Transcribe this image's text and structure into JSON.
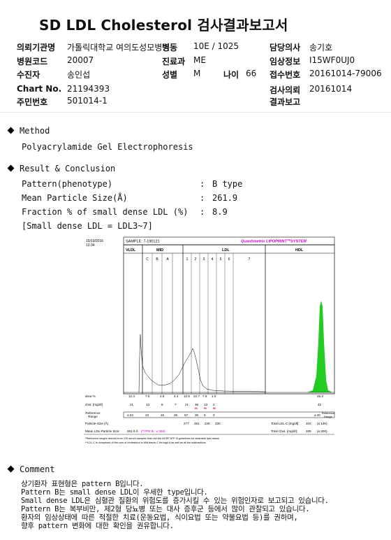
{
  "title": "SD LDL Cholesterol 검사결과보고서",
  "header": {
    "institution_label": "의뢰기관명",
    "institution": "가톨릭대학교 여의도성모병원",
    "ward_label": "병동",
    "ward": "10E / 1025",
    "physician_label": "담당의사",
    "physician": "송기호",
    "hospital_code_label": "병원코드",
    "hospital_code": "20007",
    "dept_label": "진료과",
    "dept": "ME",
    "clinical_info_label": "임상정보",
    "clinical_info": "I15WF0UJ0",
    "patient_label": "수진자",
    "patient": "송인섭",
    "sex_label": "성별",
    "sex": "M",
    "age_label": "나이",
    "age": "66",
    "reception_label": "접수번호",
    "reception": "20161014-79006",
    "chart_label": "Chart No.",
    "chart": "21194393",
    "request_date_label": "검사의뢰",
    "request_date": "20161014",
    "resident_label": "주민번호",
    "resident": "501014-1",
    "result_report_label": "결과보고",
    "result_report": ""
  },
  "method": {
    "heading": "Method",
    "text": "Polyacrylamide Gel Electrophoresis"
  },
  "result": {
    "heading": "Result & Conclusion",
    "rows": [
      {
        "label": "Pattern(phenotype)",
        "colon": ":",
        "value": "B type"
      },
      {
        "label": "Mean Particle Size(Å)",
        "colon": ":",
        "value": "261.9"
      },
      {
        "label": "Fraction % of small dense LDL (%)",
        "colon": ":",
        "value": "8.9"
      }
    ],
    "note": "[Small dense LDL = LDL3~7]"
  },
  "report": {
    "date": "10/19/2016",
    "time": "13:34",
    "sample": "SAMPLE:   7-190121",
    "brand": "Quantimetrix LIPOPRINT",
    "brand_tm": "TM",
    "brand_suffix": "SYSTEM",
    "groups": [
      "VLDL",
      "MID",
      "LDL",
      "HDL"
    ],
    "bands": [
      "C",
      "B",
      "A",
      "1",
      "2",
      "3",
      "4",
      "5",
      "6",
      "7"
    ],
    "area_label": "area %",
    "area_values": [
      "12.4",
      "7.6",
      "4.8",
      "4.4",
      "12.5",
      "23.7",
      "7.9",
      "1.0",
      "25.3"
    ],
    "chol_label": "chol. [mg/dl]",
    "chol_values": [
      "21",
      "13",
      "8",
      "7",
      "21",
      "39",
      "13",
      "2",
      "42"
    ],
    "hi_marks": [
      "HI",
      "HI",
      "HI"
    ],
    "ref_label": "Reference Range",
    "ref_values": [
      "≤ 22",
      "23",
      "15",
      "25",
      "57",
      "30",
      "6",
      "0"
    ],
    "hdl_ref": "≥ 40",
    "ref_label_right": "Reference Range",
    "particle_size_label": "Particle-Size (Å)",
    "particle_sizes": [
      "277",
      "261",
      "245",
      "230"
    ],
    "total_ldl_label": "Total LDL-C [mg/dl]:",
    "total_ldl": "102",
    "total_ldl_ref": "(≤ 130)",
    "mean_size_label": "Mean LDL-Particle Size:",
    "mean_size": "261.9 Å",
    "type_label": "(TYPE B ; ≤ 265)",
    "total_chol_label": "Total Chol. [mg/dl]:",
    "total_chol": "165",
    "total_chol_ref": "(≤ 200)",
    "footnote1": "*Reference ranges derived from 125 serum samples that met the NCEP ATP III guidelines for desirable lipid status",
    "footnote2": "**LDL-C is comprised of the sum of cholesterol in Mid bands C through A as well as all the subfractions"
  },
  "comment": {
    "heading": "Comment",
    "lines": [
      "상기환자 표현형은 pattern B입니다.",
      "Pattern B는 small dense LDL이 우세한 type입니다.",
      "Small dense LDL은 심혈관 질환의 위험도를 증가시킬 수 있는 위험인자로 보고되고 있습니다.",
      "Pattern B는 복부비만, 제2형 당뇨병 또는 대사 증후군 등에서 많이 관찰되고 있습니다.",
      "환자의 임상상태에 따른 적절한 치료(운동요법, 식이요법 또는 약물요법 등)를 권하며,",
      "향후 pattern 변화에 대한 확인을 권유합니다."
    ]
  }
}
